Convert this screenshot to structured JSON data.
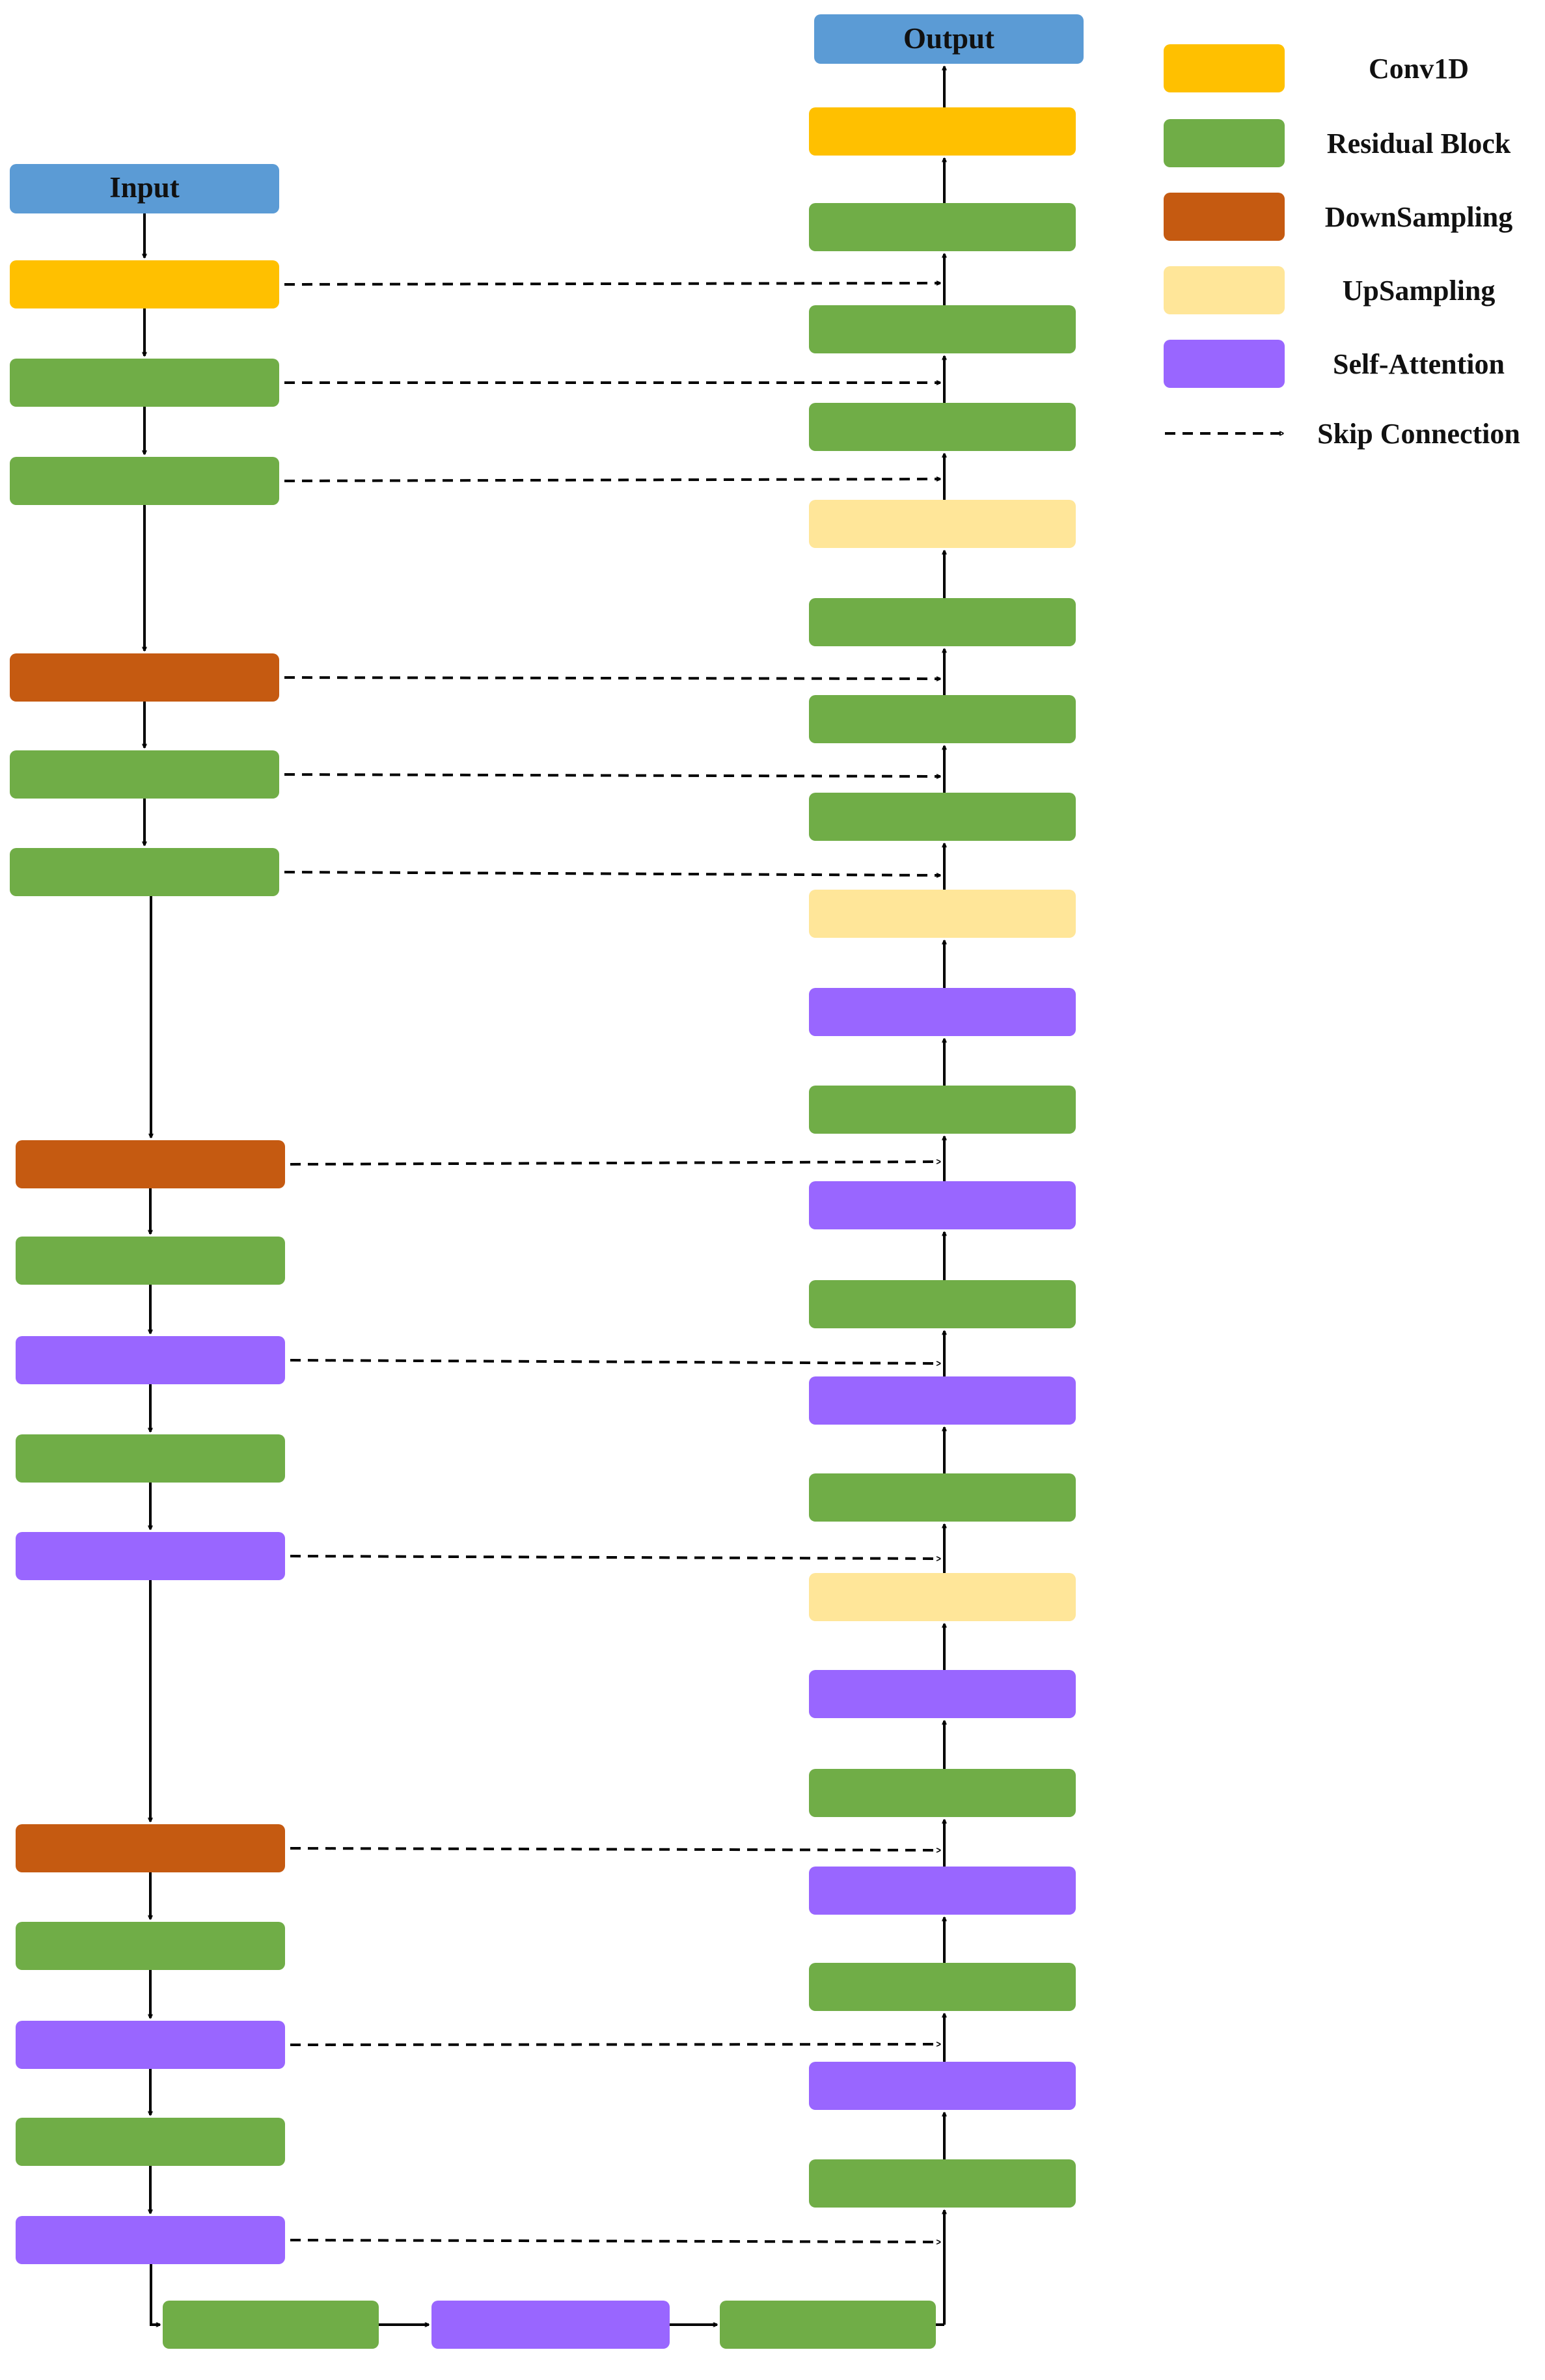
{
  "input_label": "Input",
  "output_label": "Output",
  "colors": {
    "conv": "#FFC000",
    "residual": "#70AD47",
    "down": "#C55A11",
    "up": "#FFE699",
    "attn": "#9966FF",
    "io": "#5B9BD5"
  },
  "legend": [
    {
      "type": "conv",
      "label": "Conv1D"
    },
    {
      "type": "residual",
      "label": "Residual Block"
    },
    {
      "type": "down",
      "label": "DownSampling"
    },
    {
      "type": "up",
      "label": "UpSampling"
    },
    {
      "type": "attn",
      "label": "Self-Attention"
    },
    {
      "type": "skip",
      "label": "Skip Connection"
    }
  ],
  "encoder": [
    "conv",
    "residual",
    "residual",
    "down",
    "residual",
    "residual",
    "down",
    "residual",
    "attn",
    "residual",
    "attn",
    "down",
    "residual",
    "attn",
    "residual",
    "attn"
  ],
  "bottleneck": [
    "residual",
    "attn",
    "residual"
  ],
  "decoder": [
    "conv",
    "residual",
    "residual",
    "residual",
    "up",
    "residual",
    "residual",
    "residual",
    "up",
    "attn",
    "residual",
    "attn",
    "residual",
    "attn",
    "residual",
    "up",
    "attn",
    "residual",
    "attn",
    "residual",
    "attn",
    "residual"
  ]
}
